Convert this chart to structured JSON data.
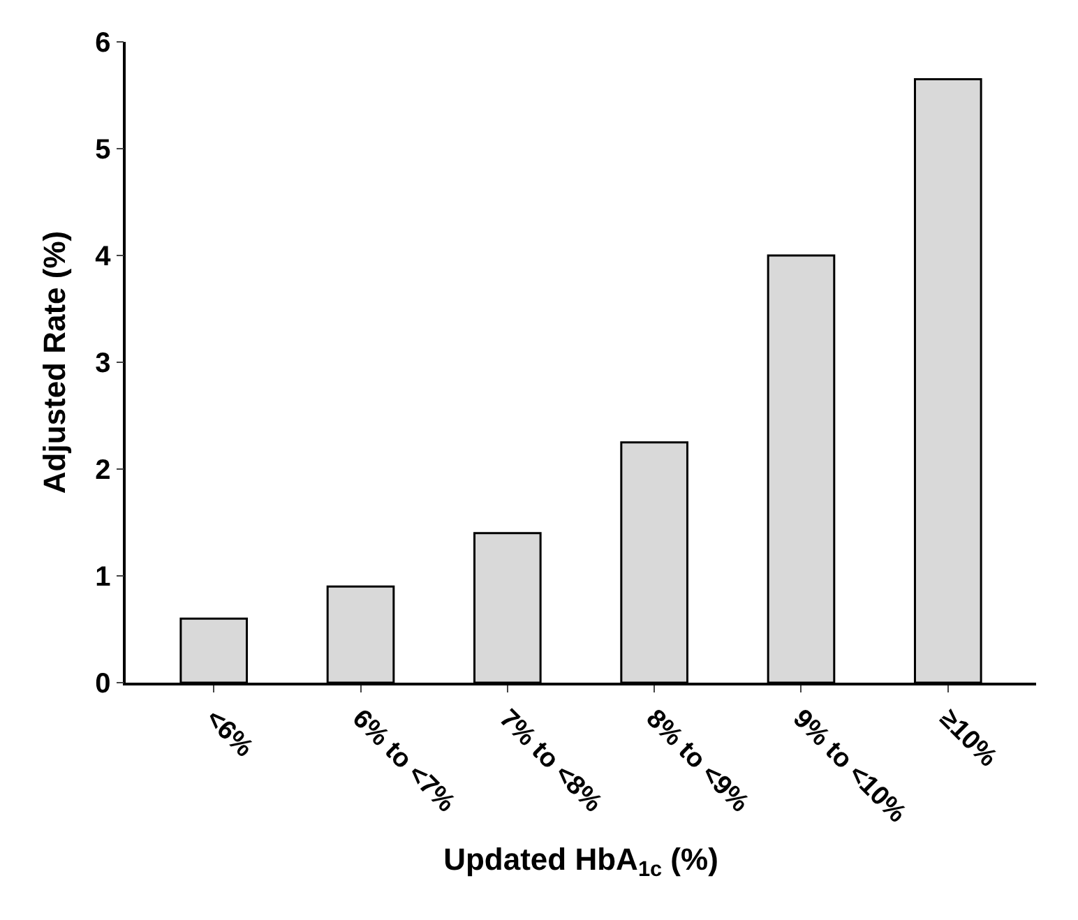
{
  "chart_data": {
    "type": "bar",
    "xlabel": "Updated HbA$_{1c}$ (%)",
    "ylabel": "Adjusted Rate (%)",
    "categories": [
      "<6%",
      "6% to <7%",
      "7% to <8%",
      "8% to <9%",
      "9% to <10%",
      "≥10%"
    ],
    "values": [
      0.6,
      0.9,
      1.4,
      2.25,
      4.0,
      5.65
    ],
    "color": "#d9d9d9",
    "ylim": [
      0,
      6
    ],
    "yticks": [
      0,
      1,
      2,
      3,
      4,
      5,
      6
    ]
  }
}
